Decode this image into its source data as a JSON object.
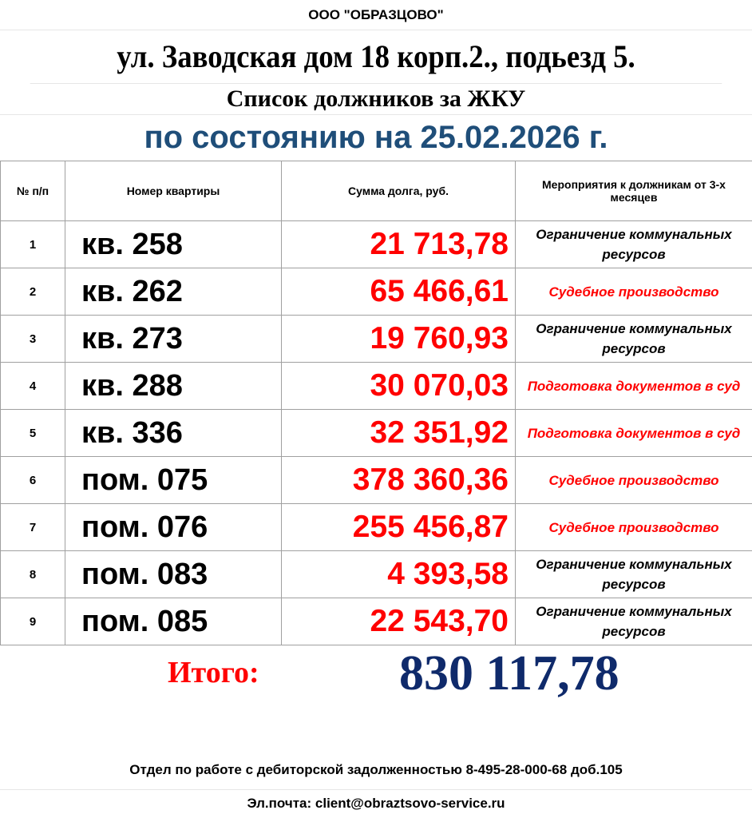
{
  "header": {
    "org": "ООО \"ОБРАЗЦОВО\"",
    "address": "ул. Заводская дом 18 корп.2., подьезд 5.",
    "title": "Список должников за ЖКУ",
    "date_line": "по состоянию на 25.02.2026 г."
  },
  "table": {
    "columns": [
      "№ п/п",
      "Номер квартиры",
      "Сумма долга, руб.",
      "Мероприятия к должникам от 3-х месяцев"
    ],
    "rows": [
      {
        "n": "1",
        "apt": "кв. 258",
        "sum": "21 713,78",
        "action": "Ограничение коммунальных  ресурсов",
        "action_red": false
      },
      {
        "n": "2",
        "apt": "кв. 262",
        "sum": "65 466,61",
        "action": "Судебное производство",
        "action_red": true
      },
      {
        "n": "3",
        "apt": "кв. 273",
        "sum": "19 760,93",
        "action": "Ограничение коммунальных  ресурсов",
        "action_red": false
      },
      {
        "n": "4",
        "apt": "кв. 288",
        "sum": "30 070,03",
        "action": "Подготовка  документов в суд",
        "action_red": true
      },
      {
        "n": "5",
        "apt": "кв. 336",
        "sum": "32 351,92",
        "action": "Подготовка  документов в суд",
        "action_red": true
      },
      {
        "n": "6",
        "apt": "пом. 075",
        "sum": "378 360,36",
        "action": "Судебное производство",
        "action_red": true
      },
      {
        "n": "7",
        "apt": "пом. 076",
        "sum": "255 456,87",
        "action": "Судебное производство",
        "action_red": true
      },
      {
        "n": "8",
        "apt": "пом. 083",
        "sum": "4 393,58",
        "action": "Ограничение коммунальных  ресурсов",
        "action_red": false
      },
      {
        "n": "9",
        "apt": "пом. 085",
        "sum": "22 543,70",
        "action": "Ограничение коммунальных  ресурсов",
        "action_red": false
      }
    ]
  },
  "total": {
    "label": "Итого:",
    "value": "830 117,78"
  },
  "footer": {
    "department": "Отдел по работе с дебиторской задолженностью 8-495-28-000-68 доб.105",
    "email": "Эл.почта: client@obraztsovo-service.ru"
  },
  "colors": {
    "date": "#1f4e79",
    "debt": "#ff0000",
    "total": "#0f2a6b"
  }
}
